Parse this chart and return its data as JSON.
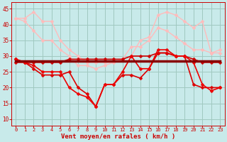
{
  "background_color": "#c8eaea",
  "grid_color": "#a0c8c0",
  "xlabel": "Vent moyen/en rafales ( km/h )",
  "xlabel_color": "#cc0000",
  "tick_color": "#cc0000",
  "xlim": [
    -0.5,
    23.5
  ],
  "ylim": [
    8,
    47
  ],
  "yticks": [
    10,
    15,
    20,
    25,
    30,
    35,
    40,
    45
  ],
  "xticks": [
    0,
    1,
    2,
    3,
    4,
    5,
    6,
    7,
    8,
    9,
    10,
    11,
    12,
    13,
    14,
    15,
    16,
    17,
    18,
    19,
    20,
    21,
    22,
    23
  ],
  "series": [
    {
      "name": "light_pink_upper",
      "color": "#ffbbbb",
      "linewidth": 1.0,
      "marker": "D",
      "markersize": 2.5,
      "x": [
        0,
        1,
        2,
        3,
        4,
        5,
        6,
        7,
        8,
        9,
        10,
        11,
        12,
        13,
        14,
        15,
        16,
        17,
        18,
        19,
        20,
        21,
        22,
        23
      ],
      "y": [
        42,
        42,
        44,
        41,
        41,
        35,
        32,
        30,
        28,
        28,
        28,
        28,
        29,
        30,
        35,
        36,
        43,
        44,
        43,
        41,
        39,
        41,
        31,
        31
      ]
    },
    {
      "name": "light_pink_lower",
      "color": "#ffbbbb",
      "linewidth": 1.0,
      "marker": "D",
      "markersize": 2.5,
      "x": [
        0,
        1,
        2,
        3,
        4,
        5,
        6,
        7,
        8,
        9,
        10,
        11,
        12,
        13,
        14,
        15,
        16,
        17,
        18,
        19,
        20,
        21,
        22,
        23
      ],
      "y": [
        42,
        41,
        38,
        35,
        35,
        32,
        30,
        27,
        27,
        26,
        27,
        28,
        29,
        33,
        33,
        35,
        39,
        38,
        36,
        34,
        32,
        32,
        31,
        32
      ]
    },
    {
      "name": "dark_red_flat",
      "color": "#880000",
      "linewidth": 2.5,
      "marker": null,
      "markersize": 0,
      "x": [
        0,
        23
      ],
      "y": [
        28.5,
        28.5
      ]
    },
    {
      "name": "medium_red_upper",
      "color": "#cc0000",
      "linewidth": 1.2,
      "marker": "D",
      "markersize": 2.5,
      "x": [
        0,
        1,
        2,
        3,
        4,
        5,
        6,
        7,
        8,
        9,
        10,
        11,
        12,
        13,
        14,
        15,
        16,
        17,
        18,
        19,
        20,
        21,
        22,
        23
      ],
      "y": [
        29,
        28,
        28,
        28,
        28,
        28,
        29,
        29,
        29,
        29,
        29,
        29,
        29,
        30,
        30,
        30,
        31,
        31,
        30,
        30,
        29,
        28,
        28,
        28
      ]
    },
    {
      "name": "red_main1",
      "color": "#dd0000",
      "linewidth": 1.2,
      "marker": "D",
      "markersize": 2.5,
      "x": [
        0,
        1,
        2,
        3,
        4,
        5,
        6,
        7,
        8,
        9,
        10,
        11,
        12,
        13,
        14,
        15,
        16,
        17,
        18,
        19,
        20,
        21,
        22,
        23
      ],
      "y": [
        28,
        28,
        26,
        24,
        24,
        24,
        25,
        20,
        18,
        14,
        21,
        21,
        24,
        24,
        23,
        26,
        31,
        31,
        30,
        30,
        21,
        20,
        20,
        20
      ]
    },
    {
      "name": "red_main2",
      "color": "#ee0000",
      "linewidth": 1.2,
      "marker": "D",
      "markersize": 2.5,
      "x": [
        0,
        1,
        2,
        3,
        4,
        5,
        6,
        7,
        8,
        9,
        10,
        11,
        12,
        13,
        14,
        15,
        16,
        17,
        18,
        19,
        20,
        21,
        22,
        23
      ],
      "y": [
        29,
        28,
        27,
        25,
        25,
        25,
        20,
        18,
        17,
        14,
        21,
        21,
        25,
        30,
        26,
        26,
        32,
        32,
        30,
        30,
        28,
        21,
        19,
        20
      ]
    }
  ]
}
